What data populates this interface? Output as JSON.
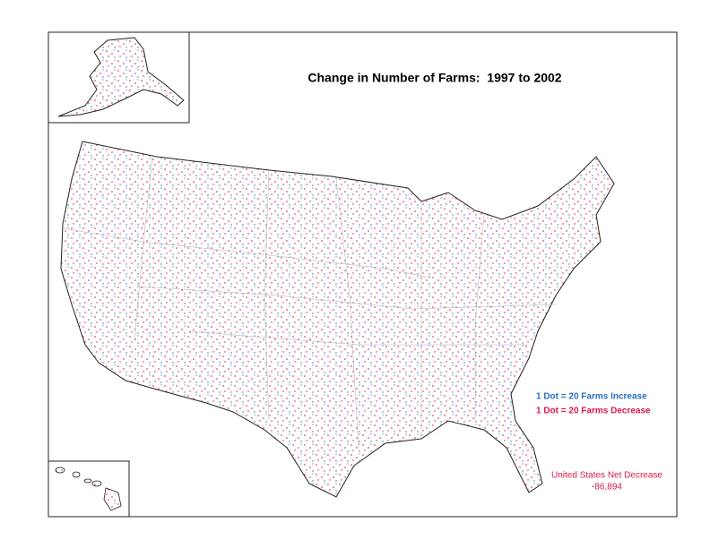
{
  "title": "Change in Number of Farms:  1997 to 2002",
  "legend": {
    "increase": "1 Dot = 20 Farms Increase",
    "decrease": "1 Dot = 20 Farms Decrease"
  },
  "note": {
    "label": "United States Net Decrease",
    "value": "-86,894"
  }
}
